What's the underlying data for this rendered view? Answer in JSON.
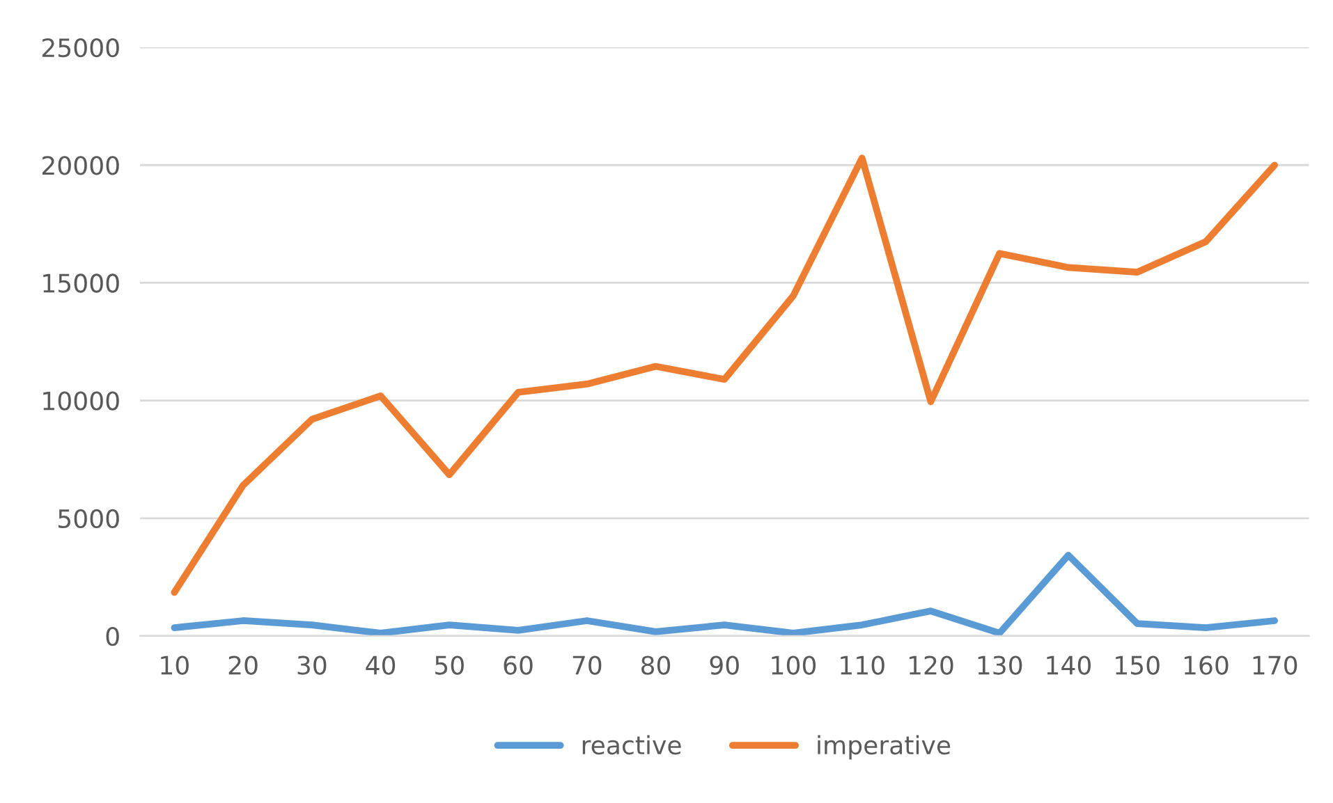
{
  "chart_data": {
    "type": "line",
    "categories": [
      "10",
      "20",
      "30",
      "40",
      "50",
      "60",
      "70",
      "80",
      "90",
      "100",
      "110",
      "120",
      "130",
      "140",
      "150",
      "160",
      "170"
    ],
    "series": [
      {
        "name": "reactive",
        "color": "#5b9bd5",
        "values": [
          350,
          650,
          470,
          120,
          470,
          240,
          650,
          180,
          470,
          120,
          470,
          1060,
          120,
          3430,
          530,
          350,
          650
        ]
      },
      {
        "name": "imperative",
        "color": "#ed7d31",
        "values": [
          1850,
          6400,
          9200,
          10200,
          6850,
          10350,
          10700,
          11450,
          10900,
          14450,
          20300,
          9950,
          16250,
          15650,
          15450,
          16750,
          20000
        ]
      }
    ],
    "ylim": [
      0,
      25000
    ],
    "yticks": [
      0,
      5000,
      10000,
      15000,
      20000,
      25000
    ],
    "grid": "y",
    "legend": "bottom",
    "marker": "none",
    "line_style": "solid"
  }
}
